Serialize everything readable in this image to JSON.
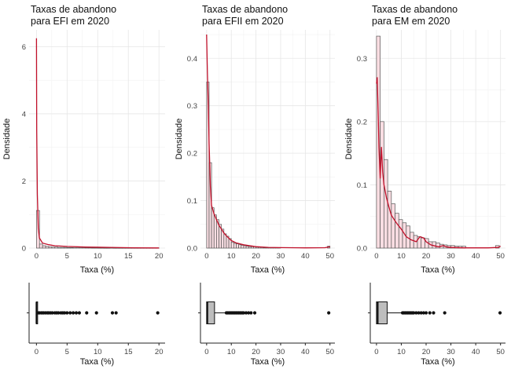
{
  "chart_data": [
    {
      "type": "histogram",
      "title": [
        "Taxas de abandono",
        "para EFI em 2020"
      ],
      "xlabel": "Taxa (%)",
      "ylabel": "Densidade",
      "xlim": [
        -1.2,
        21
      ],
      "ylim": [
        0,
        6.5
      ],
      "xticks": [
        0,
        5,
        10,
        15,
        20
      ],
      "yticks": [
        0,
        2,
        4,
        6
      ],
      "bin_width": 0.5,
      "hist_density": [
        1.12,
        0.12,
        0.07,
        0.05,
        0.04,
        0.03,
        0.03,
        0.02,
        0.02,
        0.02,
        0.015,
        0.015,
        0.01,
        0.01,
        0.01,
        0.01,
        0.008,
        0.008,
        0.006,
        0.006,
        0.005,
        0.005,
        0.004,
        0.004,
        0.006,
        0.004,
        0.004,
        0.004,
        0.004,
        0.004,
        0.004,
        0.004,
        0.004,
        0.004,
        0.004,
        0.004,
        0.004,
        0.004,
        0.004,
        0.004
      ],
      "kde": {
        "x": [
          0,
          0.05,
          0.15,
          0.3,
          0.5,
          1,
          2,
          3,
          5,
          8,
          12,
          16,
          20
        ],
        "y": [
          6.25,
          3.5,
          1.6,
          0.6,
          0.3,
          0.15,
          0.1,
          0.07,
          0.05,
          0.03,
          0.02,
          0.01,
          0.005
        ]
      },
      "boxplot": {
        "xticks": [
          0,
          5,
          10,
          15,
          20
        ],
        "q1": 0,
        "median": 0,
        "q3": 0,
        "whisker_low": 0,
        "whisker_high": 0,
        "outliers": [
          0.3,
          0.5,
          0.8,
          1,
          1.2,
          1.5,
          1.8,
          2,
          2.3,
          2.6,
          3,
          3.3,
          3.6,
          4,
          4.3,
          4.6,
          5,
          5.5,
          6,
          6.5,
          7,
          8.2,
          9.8,
          12.4,
          13,
          19.8
        ]
      }
    },
    {
      "type": "histogram",
      "title": [
        "Taxas de abandono",
        "para EFII em 2020"
      ],
      "xlabel": "Taxa (%)",
      "ylabel": "Densidade",
      "xlim": [
        -2.5,
        52
      ],
      "ylim": [
        0,
        0.46
      ],
      "xticks": [
        0,
        10,
        20,
        30,
        40,
        50
      ],
      "yticks": [
        0,
        0.1,
        0.2,
        0.3,
        0.4
      ],
      "ytick_labels": [
        "0.0",
        "0.1",
        "0.2",
        "0.3",
        "0.4"
      ],
      "bin_width": 1,
      "hist_density": [
        0.35,
        0.18,
        0.085,
        0.07,
        0.06,
        0.05,
        0.04,
        0.03,
        0.025,
        0.02,
        0.012,
        0.01,
        0.009,
        0.007,
        0.006,
        0.005,
        0.004,
        0.003,
        0.003,
        0.003,
        0.002,
        0.002,
        0.002,
        0.001,
        0.001,
        0.001,
        0.001,
        0.001,
        0.001,
        0.001,
        0,
        0,
        0,
        0,
        0,
        0,
        0,
        0,
        0,
        0,
        0,
        0,
        0,
        0,
        0,
        0,
        0,
        0,
        0,
        0.004
      ],
      "kde": {
        "x": [
          0,
          0.3,
          0.7,
          1,
          1.5,
          2,
          3,
          4,
          5,
          6,
          7,
          8,
          10,
          12,
          15,
          20,
          25,
          30,
          40,
          48,
          50
        ],
        "y": [
          0.45,
          0.37,
          0.3,
          0.22,
          0.13,
          0.09,
          0.072,
          0.06,
          0.048,
          0.04,
          0.032,
          0.026,
          0.016,
          0.011,
          0.007,
          0.003,
          0.0015,
          0.001,
          0.0005,
          0.0008,
          0.003
        ]
      },
      "boxplot": {
        "xticks": [
          0,
          10,
          20,
          30,
          40,
          50
        ],
        "q1": 0,
        "median": 0.3,
        "q3": 3.2,
        "whisker_low": 0,
        "whisker_high": 7.5,
        "outliers": [
          8,
          8.5,
          9,
          9.5,
          10,
          10.5,
          11,
          11.5,
          12,
          12.5,
          13,
          13.5,
          14,
          14.5,
          15,
          16,
          17,
          18,
          19.5,
          49.5
        ]
      }
    },
    {
      "type": "histogram",
      "title": [
        "Taxas de abandono",
        "para EM em 2020"
      ],
      "xlabel": "Taxa (%)",
      "ylabel": "Densidade",
      "xlim": [
        -2.5,
        52
      ],
      "ylim": [
        0,
        0.345
      ],
      "xticks": [
        0,
        10,
        20,
        30,
        40,
        50
      ],
      "yticks": [
        0,
        0.1,
        0.2,
        0.3
      ],
      "ytick_labels": [
        "0.0",
        "0.1",
        "0.2",
        "0.3"
      ],
      "bin_width": 1.5,
      "hist_density": [
        0.335,
        0.2,
        0.14,
        0.09,
        0.07,
        0.055,
        0.045,
        0.04,
        0.035,
        0.025,
        0.02,
        0.018,
        0.016,
        0.015,
        0.01,
        0.01,
        0.008,
        0.006,
        0.005,
        0.004,
        0.004,
        0.003,
        0.003,
        0.003,
        0,
        0,
        0,
        0,
        0,
        0,
        0,
        0,
        0.004
      ],
      "kde": {
        "x": [
          0,
          0.3,
          0.7,
          1,
          1.5,
          2,
          2.5,
          3,
          4,
          5,
          6,
          8,
          10,
          12,
          14,
          16,
          17.5,
          19,
          20,
          22,
          25,
          27,
          28,
          30,
          35,
          40,
          45,
          49,
          50
        ],
        "y": [
          0.26,
          0.27,
          0.21,
          0.16,
          0.11,
          0.16,
          0.12,
          0.1,
          0.08,
          0.065,
          0.052,
          0.04,
          0.03,
          0.018,
          0.013,
          0.01,
          0.018,
          0.016,
          0.01,
          0.005,
          0.002,
          0.004,
          0.002,
          0.001,
          0.0004,
          0.0004,
          0.0004,
          0.001,
          0.003
        ]
      },
      "boxplot": {
        "xticks": [
          0,
          10,
          20,
          30,
          40,
          50
        ],
        "q1": 0,
        "median": 0.5,
        "q3": 4.3,
        "whisker_low": 0,
        "whisker_high": 10.2,
        "outliers": [
          10.5,
          11,
          11.5,
          12,
          12.5,
          13,
          13.5,
          14,
          14.5,
          15,
          16,
          17,
          18,
          19,
          20,
          21.5,
          23,
          27.5,
          49.8
        ]
      }
    }
  ]
}
